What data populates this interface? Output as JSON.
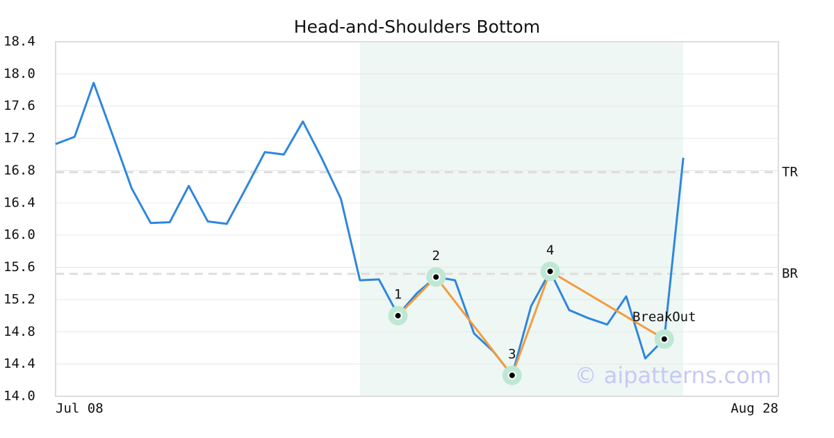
{
  "chart_data": {
    "type": "line",
    "title": "Head-and-Shoulders Bottom",
    "categories": [
      "Jul 08",
      null,
      null,
      null,
      null,
      null,
      null,
      null,
      null,
      null,
      null,
      null,
      null,
      null,
      null,
      null,
      null,
      null,
      null,
      null,
      null,
      null,
      null,
      null,
      null,
      null,
      null,
      null,
      null,
      null,
      null,
      null,
      null,
      null,
      null,
      null,
      null,
      null,
      "Aug 28"
    ],
    "values": [
      17.13,
      17.22,
      17.89,
      17.24,
      16.58,
      16.15,
      16.16,
      16.61,
      16.17,
      16.14,
      16.58,
      17.03,
      17.0,
      17.41,
      16.95,
      16.45,
      15.44,
      15.45,
      15.01,
      15.28,
      15.48,
      15.44,
      14.78,
      14.56,
      14.26,
      15.12,
      15.55,
      15.07,
      14.97,
      14.89,
      15.24,
      14.47,
      14.71,
      16.96,
      null,
      null,
      null,
      null,
      null
    ],
    "color": "#2e86de",
    "ylim": [
      14.0,
      18.4
    ],
    "yticks": [
      {
        "value": 14.0,
        "label": "14.0"
      },
      14.4,
      14.8,
      15.2,
      15.6,
      {
        "value": 16.0,
        "label": "16.0"
      },
      16.4,
      16.8,
      17.2,
      17.6,
      {
        "value": 18.0,
        "label": "18.0"
      },
      18.4
    ],
    "grid": true,
    "highlight": {
      "from": 16,
      "to": 33,
      "color": "#eef7f3"
    },
    "levels": [
      {
        "label": "TR",
        "value": 16.78
      },
      {
        "label": "BR",
        "value": 15.52
      }
    ],
    "pattern": {
      "color": "#f39c3d",
      "points": [
        {
          "x": 18,
          "value": 15.0,
          "label": "1"
        },
        {
          "x": 20,
          "value": 15.48,
          "label": "2"
        },
        {
          "x": 24,
          "value": 14.26,
          "label": "3"
        },
        {
          "x": 26,
          "value": 15.55,
          "label": "4"
        },
        {
          "x": 32,
          "value": 14.71,
          "label": "BreakOut"
        }
      ]
    },
    "watermark": "© aipatterns.com"
  }
}
